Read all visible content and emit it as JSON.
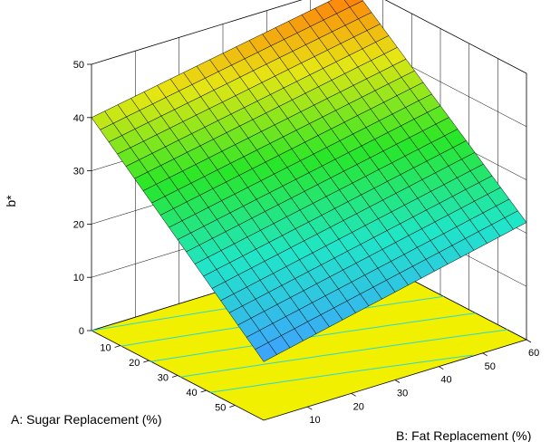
{
  "chart_data": {
    "type": "surface3d",
    "xlabel": "A: Sugar Replacement (%)",
    "ylabel": "B: Fat Replacement (%)",
    "zlabel": "b*",
    "xlim": [
      0,
      60
    ],
    "ylim": [
      0,
      60
    ],
    "zlim": [
      0,
      50
    ],
    "x_ticks": [
      "10",
      "20",
      "30",
      "40",
      "50"
    ],
    "y_ticks": [
      "10",
      "20",
      "30",
      "40",
      "50",
      "60"
    ],
    "z_ticks": [
      "0",
      "10",
      "20",
      "30",
      "40",
      "50"
    ],
    "grid": true,
    "contour_floor_color": "#f0f000",
    "surface_corner_values": {
      "sugar0_fat0": 40,
      "sugar0_fat60": 49,
      "sugar60_fat0": 11,
      "sugar60_fat60": 22
    }
  }
}
